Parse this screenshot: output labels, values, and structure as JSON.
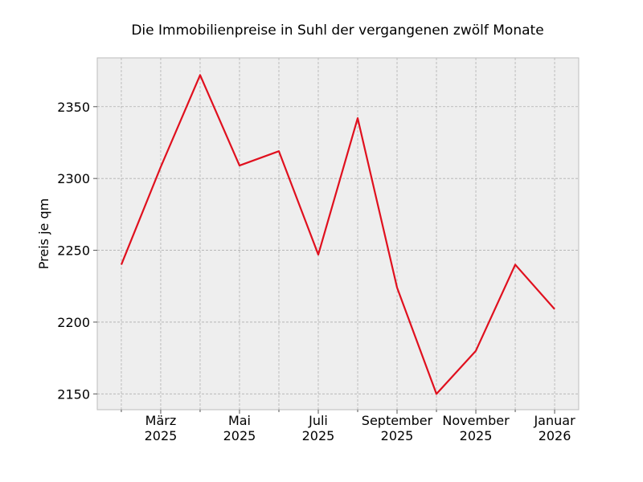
{
  "chart_data": {
    "type": "line",
    "title": "Die Immobilienpreise in Suhl der vergangenen zwölf Monate",
    "y_label": "Preis je qm",
    "categories": [
      null,
      "März\n2025",
      null,
      "Mai\n2025",
      null,
      "Juli\n2025",
      null,
      "September\n2025",
      null,
      "November\n2025",
      null,
      "Januar\n2026"
    ],
    "series": [
      {
        "name": "Preis je qm",
        "color": "#e0101e",
        "values": [
          2240,
          2308,
          2372,
          2309,
          2319,
          2247,
          2342,
          2224,
          2150,
          2180,
          2240,
          2209
        ]
      }
    ],
    "ylim": [
      2139,
      2384
    ],
    "yticks": [
      2150,
      2200,
      2250,
      2300,
      2350
    ],
    "grid": true
  }
}
